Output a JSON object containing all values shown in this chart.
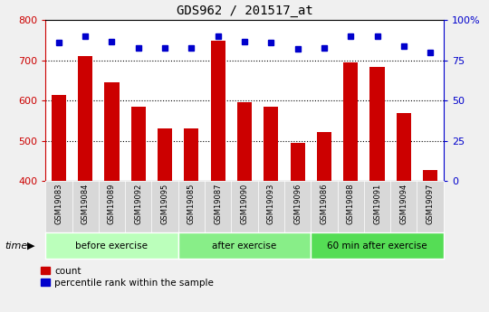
{
  "title": "GDS962 / 201517_at",
  "categories": [
    "GSM19083",
    "GSM19084",
    "GSM19089",
    "GSM19092",
    "GSM19095",
    "GSM19085",
    "GSM19087",
    "GSM19090",
    "GSM19093",
    "GSM19096",
    "GSM19086",
    "GSM19088",
    "GSM19091",
    "GSM19094",
    "GSM19097"
  ],
  "bar_values": [
    615,
    710,
    645,
    585,
    530,
    530,
    750,
    595,
    585,
    495,
    522,
    695,
    685,
    568,
    428
  ],
  "dot_values": [
    86,
    90,
    87,
    83,
    83,
    83,
    90,
    87,
    86,
    82,
    83,
    90,
    90,
    84,
    80
  ],
  "bar_color": "#cc0000",
  "dot_color": "#0000cc",
  "ylim_left": [
    400,
    800
  ],
  "ylim_right": [
    0,
    100
  ],
  "yticks_left": [
    400,
    500,
    600,
    700,
    800
  ],
  "yticks_right": [
    0,
    25,
    50,
    75,
    100
  ],
  "groups": [
    {
      "label": "before exercise",
      "start": 0,
      "end": 5
    },
    {
      "label": "after exercise",
      "start": 5,
      "end": 10
    },
    {
      "label": "60 min after exercise",
      "start": 10,
      "end": 15
    }
  ],
  "group_colors": [
    "#bbffbb",
    "#88ee88",
    "#55dd55"
  ],
  "xlabel_time": "time",
  "legend_count": "count",
  "legend_percentile": "percentile rank within the sample",
  "xtick_bg": "#d8d8d8",
  "fig_bg": "#f0f0f0",
  "plot_bg": "#ffffff",
  "grid_dotted_vals": [
    500,
    600,
    700
  ]
}
